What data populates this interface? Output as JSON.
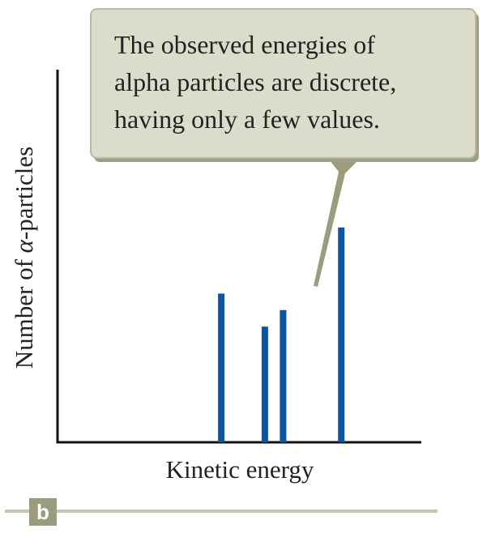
{
  "chart_data": {
    "type": "bar",
    "x": [
      4.5,
      5.7,
      6.2,
      7.8
    ],
    "values": [
      54,
      42,
      48,
      78
    ],
    "xlim": [
      0,
      10
    ],
    "ylim": [
      0,
      120
    ],
    "xlabel": "Kinetic energy",
    "ylabel_prefix": "Number of ",
    "ylabel_symbol": "α",
    "ylabel_suffix": "-particles",
    "bar_color": "#0b55a3",
    "axis_color": "#111111",
    "grid": false
  },
  "callout": {
    "lines": [
      "The observed energies of",
      "alpha particles are discrete,",
      "having only a few values."
    ],
    "fill_color": "#dcdccb",
    "border_color": "#b9b9a2",
    "pointer_color": "#9b9b7e"
  },
  "panel_label": "b",
  "footer_rule_color": "#c5c5b4"
}
